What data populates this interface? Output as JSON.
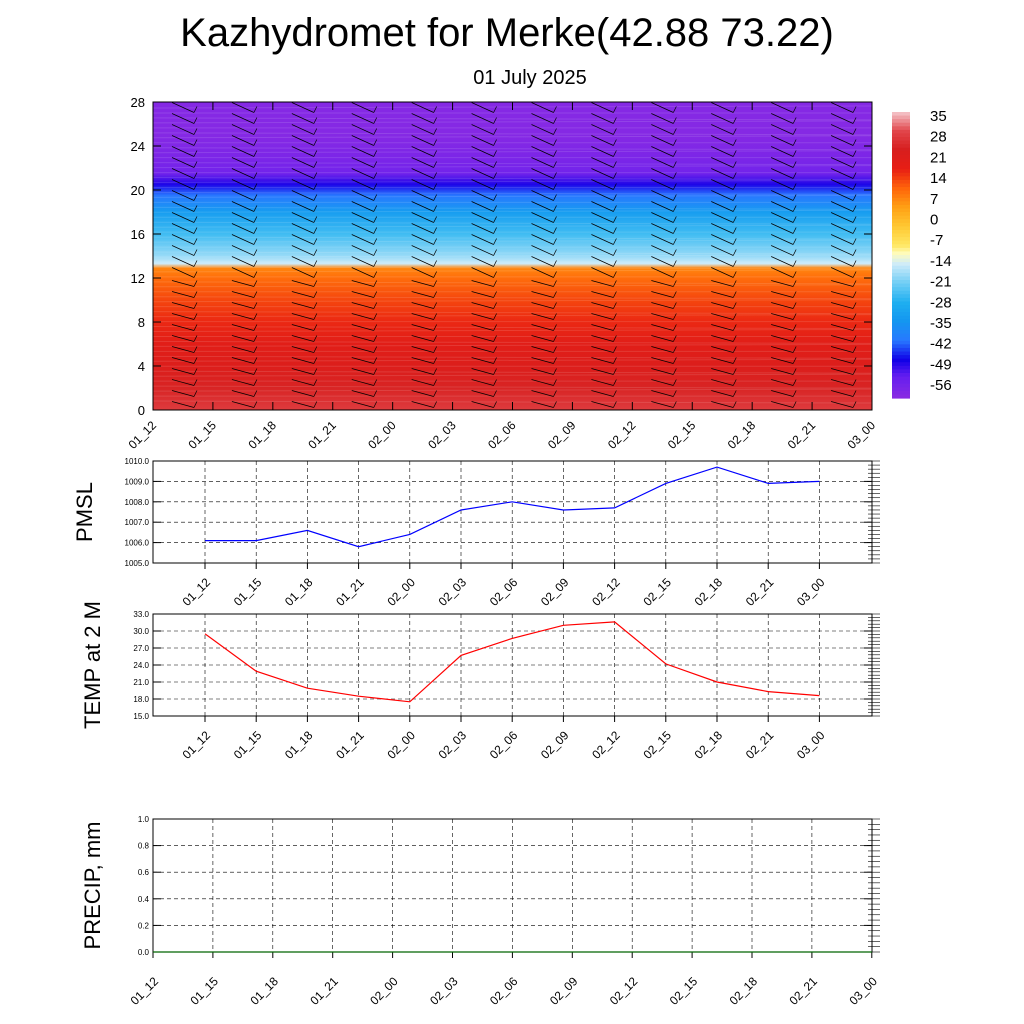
{
  "page": {
    "title": "Kazhydromet for Merke(42.88 73.22)",
    "subtitle": "01 July 2025"
  },
  "chart_data": [
    {
      "type": "heatmap",
      "name": "upper-air-temperature-wind",
      "x_categories": [
        "01_12",
        "01_15",
        "01_18",
        "01_21",
        "02_00",
        "02_03",
        "02_06",
        "02_09",
        "02_12",
        "02_15",
        "02_18",
        "02_21",
        "03_00"
      ],
      "yticks": [
        0,
        4,
        8,
        12,
        16,
        20,
        24,
        28
      ],
      "ylim": [
        0,
        28
      ],
      "colorbar": {
        "labels": [
          "35",
          "28",
          "21",
          "14",
          "7",
          "0",
          "-7",
          "-14",
          "-21",
          "-28",
          "-35",
          "-42",
          "-49",
          "-56"
        ],
        "vmin": -63,
        "vmax": 42
      },
      "temperature_profile": {
        "heights": [
          0,
          2,
          4,
          6,
          8,
          10,
          12,
          12.9,
          13.3,
          14,
          16,
          18,
          19.5,
          20.5,
          21.5,
          23,
          25,
          28
        ],
        "values": [
          33,
          29,
          26,
          24,
          20,
          17,
          13,
          10,
          -14,
          -18,
          -25,
          -33,
          -42,
          -50,
          -58,
          -60,
          -62,
          -62
        ]
      }
    },
    {
      "type": "line",
      "name": "pmsl",
      "ylabel": "PMSL",
      "categories": [
        "01_12",
        "01_15",
        "01_18",
        "01_21",
        "02_00",
        "02_03",
        "02_06",
        "02_09",
        "02_12",
        "02_15",
        "02_18",
        "02_21",
        "03_00"
      ],
      "yticks": [
        "1005.0",
        "1006.0",
        "1007.0",
        "1008.0",
        "1009.0",
        "1010.0"
      ],
      "ylim": [
        1005,
        1010
      ],
      "color": "#0000ff",
      "values": [
        1006.1,
        1006.1,
        1006.6,
        1005.8,
        1006.4,
        1007.6,
        1008.0,
        1007.6,
        1007.7,
        1008.9,
        1009.7,
        1008.9,
        1009.0
      ]
    },
    {
      "type": "line",
      "name": "temp-2m",
      "ylabel": "TEMP at 2 M",
      "categories": [
        "01_12",
        "01_15",
        "01_18",
        "01_21",
        "02_00",
        "02_03",
        "02_06",
        "02_09",
        "02_12",
        "02_15",
        "02_18",
        "02_21",
        "03_00"
      ],
      "yticks": [
        "15.0",
        "18.0",
        "21.0",
        "24.0",
        "27.0",
        "30.0",
        "33.0"
      ],
      "ylim": [
        15,
        33
      ],
      "color": "#ff0000",
      "values": [
        29.5,
        22.9,
        19.9,
        18.5,
        17.5,
        25.7,
        28.7,
        31.0,
        31.6,
        24.2,
        21.0,
        19.3,
        18.6
      ]
    },
    {
      "type": "line",
      "name": "precip",
      "ylabel": "PRECIP, mm",
      "categories": [
        "01_12",
        "01_15",
        "01_18",
        "01_21",
        "02_00",
        "02_03",
        "02_06",
        "02_09",
        "02_12",
        "02_15",
        "02_18",
        "02_21",
        "03_00"
      ],
      "yticks": [
        "0.0",
        "0.2",
        "0.4",
        "0.6",
        "0.8",
        "1.0"
      ],
      "ylim": [
        0,
        1
      ],
      "color": "#006400",
      "values": [
        0,
        0,
        0,
        0,
        0,
        0,
        0,
        0,
        0,
        0,
        0,
        0,
        0
      ]
    }
  ]
}
